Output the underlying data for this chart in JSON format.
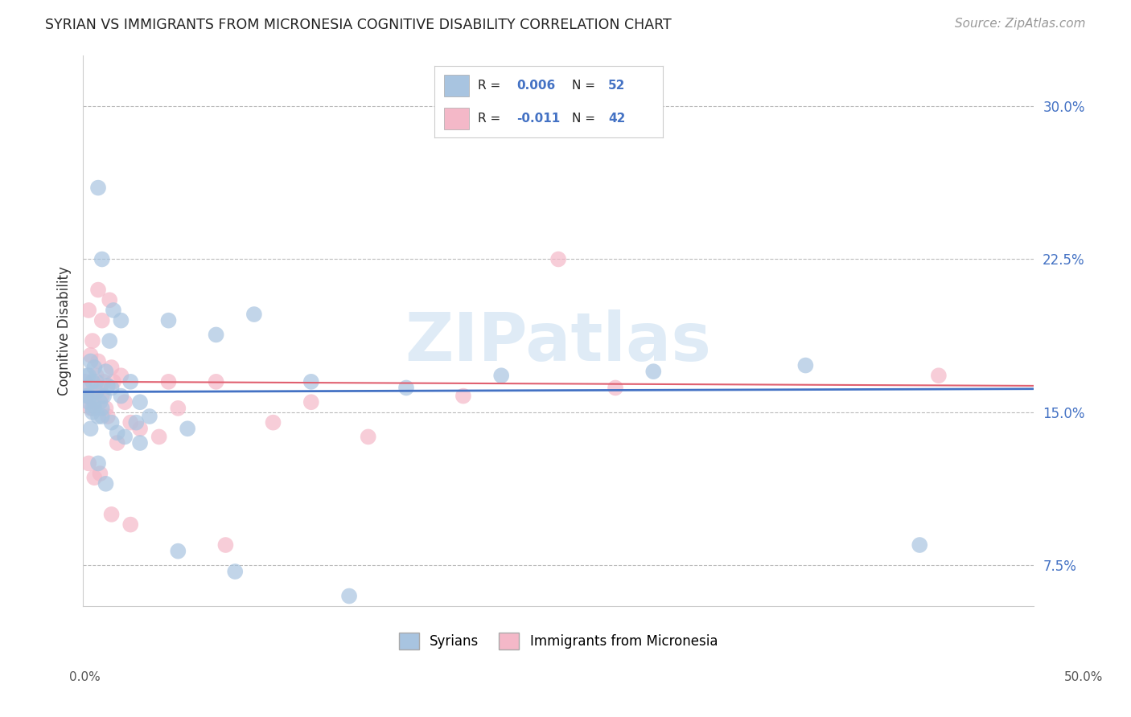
{
  "title": "SYRIAN VS IMMIGRANTS FROM MICRONESIA COGNITIVE DISABILITY CORRELATION CHART",
  "source": "Source: ZipAtlas.com",
  "ylabel": "Cognitive Disability",
  "yticks": [
    7.5,
    15.0,
    22.5,
    30.0
  ],
  "ytick_labels": [
    "7.5%",
    "15.0%",
    "22.5%",
    "30.0%"
  ],
  "xlim": [
    0.0,
    50.0
  ],
  "ylim": [
    5.5,
    32.5
  ],
  "watermark": "ZIPatlas",
  "color_blue": "#a8c4e0",
  "color_pink": "#f4b8c8",
  "color_blue_line": "#4472c4",
  "color_pink_line": "#e06070",
  "color_grid": "#bbbbbb",
  "color_title": "#222222",
  "color_text_blue": "#4472c4",
  "syrians_x": [
    0.1,
    0.2,
    0.3,
    0.3,
    0.4,
    0.4,
    0.5,
    0.5,
    0.6,
    0.6,
    0.7,
    0.8,
    0.8,
    0.9,
    1.0,
    1.0,
    1.1,
    1.2,
    1.3,
    1.4,
    1.5,
    1.6,
    1.8,
    2.0,
    2.2,
    2.5,
    3.0,
    3.5,
    4.5,
    5.5,
    7.0,
    9.0,
    12.0,
    17.0,
    22.0,
    30.0,
    38.0,
    44.0,
    0.2,
    0.5,
    0.7,
    1.0,
    1.5,
    2.0,
    3.0,
    5.0,
    8.0,
    14.0,
    0.3,
    0.8,
    1.2,
    2.8
  ],
  "syrians_y": [
    16.2,
    15.8,
    15.5,
    16.8,
    14.2,
    17.5,
    15.0,
    16.5,
    15.3,
    17.2,
    16.0,
    26.0,
    14.8,
    15.5,
    22.5,
    15.2,
    15.8,
    17.0,
    16.3,
    18.5,
    14.5,
    20.0,
    14.0,
    19.5,
    13.8,
    16.5,
    13.5,
    14.8,
    19.5,
    14.2,
    18.8,
    19.8,
    16.5,
    16.2,
    16.8,
    17.0,
    17.3,
    8.5,
    16.8,
    15.2,
    16.5,
    14.8,
    16.2,
    15.8,
    15.5,
    8.2,
    7.2,
    6.0,
    15.8,
    12.5,
    11.5,
    14.5
  ],
  "micronesia_x": [
    0.1,
    0.2,
    0.3,
    0.4,
    0.4,
    0.5,
    0.5,
    0.6,
    0.7,
    0.8,
    0.8,
    0.9,
    1.0,
    1.0,
    1.1,
    1.2,
    1.3,
    1.4,
    1.5,
    1.6,
    1.8,
    2.0,
    2.2,
    2.5,
    3.0,
    4.0,
    5.0,
    7.0,
    10.0,
    15.0,
    25.0,
    0.3,
    0.6,
    0.9,
    1.5,
    2.5,
    4.5,
    7.5,
    12.0,
    20.0,
    28.0,
    45.0
  ],
  "micronesia_y": [
    16.5,
    15.8,
    20.0,
    15.2,
    17.8,
    16.0,
    18.5,
    15.5,
    16.8,
    21.0,
    17.5,
    16.2,
    19.5,
    15.8,
    16.5,
    15.2,
    14.8,
    20.5,
    17.2,
    16.5,
    13.5,
    16.8,
    15.5,
    14.5,
    14.2,
    13.8,
    15.2,
    16.5,
    14.5,
    13.8,
    22.5,
    12.5,
    11.8,
    12.0,
    10.0,
    9.5,
    16.5,
    8.5,
    15.5,
    15.8,
    16.2,
    16.8
  ],
  "blue_intercept": 16.0,
  "blue_slope": 0.003,
  "pink_intercept": 16.5,
  "pink_slope": -0.004
}
